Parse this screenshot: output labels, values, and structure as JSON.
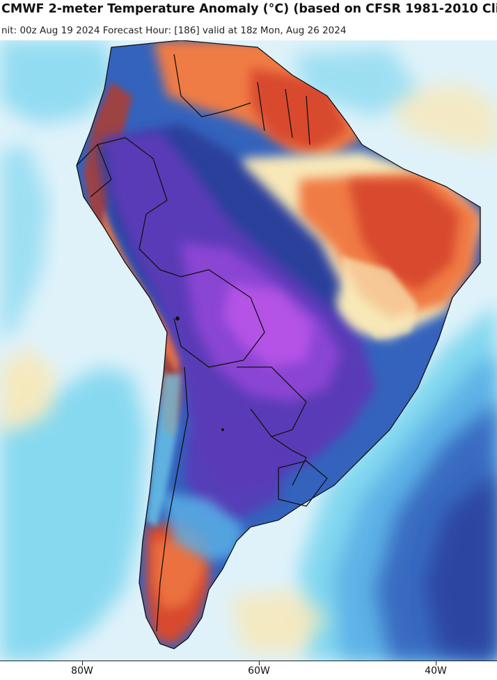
{
  "header": {
    "title": "CMWF 2-meter Temperature Anomaly (°C) (based on CFSR 1981-2010 Cli",
    "subtitle": "nit: 00z Aug 19 2024   Forecast Hour: [186]   valid at 18z Mon, Aug 26 2024"
  },
  "map": {
    "region": "South America",
    "projection": "lat-lon",
    "field": "2-meter temperature anomaly",
    "colors": {
      "ocean_pale": "#dff2fa",
      "cyan": "#72d3ee",
      "light_blue": "#5aaee6",
      "blue": "#3463bd",
      "navy": "#2a3f9b",
      "indigo": "#5a3bb7",
      "violet": "#8a45d3",
      "magenta": "#b452e6",
      "cream": "#f8e8b8",
      "orange": "#f07c45",
      "red": "#d84a2e",
      "dark_red": "#b83a28"
    },
    "longitude_ticks": [
      "80W",
      "60W",
      "40W"
    ]
  }
}
